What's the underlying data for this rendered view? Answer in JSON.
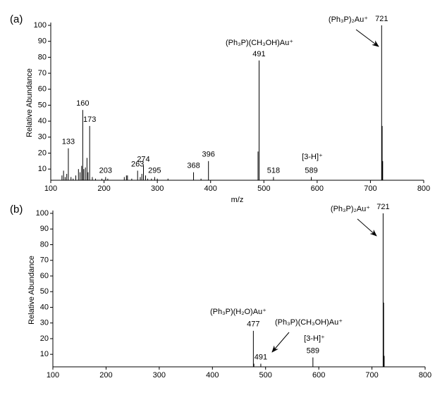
{
  "chart_data": [
    {
      "type": "stick",
      "panel_label": "(a)",
      "y_label": "Relative Abundance",
      "x_label": "m/z",
      "color": "#000000",
      "x": [
        121,
        124,
        127,
        130,
        133,
        138,
        142,
        147,
        152,
        155,
        158,
        160,
        162,
        165,
        168,
        170,
        173,
        178,
        184,
        196,
        203,
        207,
        238,
        242,
        244,
        252,
        263,
        268,
        271,
        274,
        278,
        282,
        289,
        295,
        300,
        320,
        368,
        382,
        396,
        489,
        491,
        518,
        589,
        721,
        722,
        723
      ],
      "values": [
        6,
        9,
        5,
        7,
        23,
        5,
        4,
        6,
        10,
        8,
        12,
        47,
        10,
        11,
        17,
        8,
        37,
        5,
        4,
        4,
        5,
        4,
        5,
        6,
        6,
        4,
        9,
        5,
        7,
        12,
        6,
        4,
        4,
        5,
        4,
        4,
        8,
        4,
        15,
        21,
        78,
        5,
        5,
        100,
        37,
        15
      ],
      "labels": [
        null,
        null,
        null,
        null,
        "133",
        null,
        null,
        null,
        null,
        null,
        null,
        "160",
        null,
        null,
        null,
        null,
        "173",
        null,
        null,
        null,
        "203",
        null,
        null,
        null,
        null,
        null,
        "263",
        null,
        null,
        "274",
        null,
        null,
        null,
        "295",
        null,
        null,
        "368",
        null,
        "396",
        null,
        "491",
        "518",
        "589",
        "721",
        null,
        null
      ],
      "annotations": [
        "(Ph₃P)₂Au⁺",
        "(Ph₃P)(CH₃OH)Au⁺",
        "[3-H]⁺"
      ],
      "xlim": [
        100,
        800
      ],
      "xticks": [
        100,
        200,
        300,
        400,
        500,
        600,
        700,
        800
      ],
      "ylim": [
        3,
        100
      ],
      "yticks": [
        10,
        20,
        30,
        40,
        50,
        60,
        70,
        80,
        90,
        100
      ]
    },
    {
      "type": "stick",
      "panel_label": "(b)",
      "y_label": "Relative Abundance",
      "color": "#000000",
      "x": [
        477,
        478,
        491,
        589,
        721,
        722,
        723
      ],
      "values": [
        25,
        4,
        4,
        8,
        100,
        43,
        9
      ],
      "labels": [
        "477",
        null,
        "491",
        "589",
        "721",
        null,
        null
      ],
      "annotations": [
        "(Ph₃P)₂Au⁺",
        "(Ph₃P)(H₂O)Au⁺",
        "(Ph₃P)(CH₃OH)Au⁺",
        "[3-H]⁺"
      ],
      "xlim": [
        100,
        800
      ],
      "xticks": [
        100,
        200,
        300,
        400,
        500,
        600,
        700,
        800
      ],
      "ylim": [
        2,
        100
      ],
      "yticks": [
        10,
        20,
        30,
        40,
        50,
        60,
        70,
        80,
        90,
        100
      ]
    }
  ]
}
